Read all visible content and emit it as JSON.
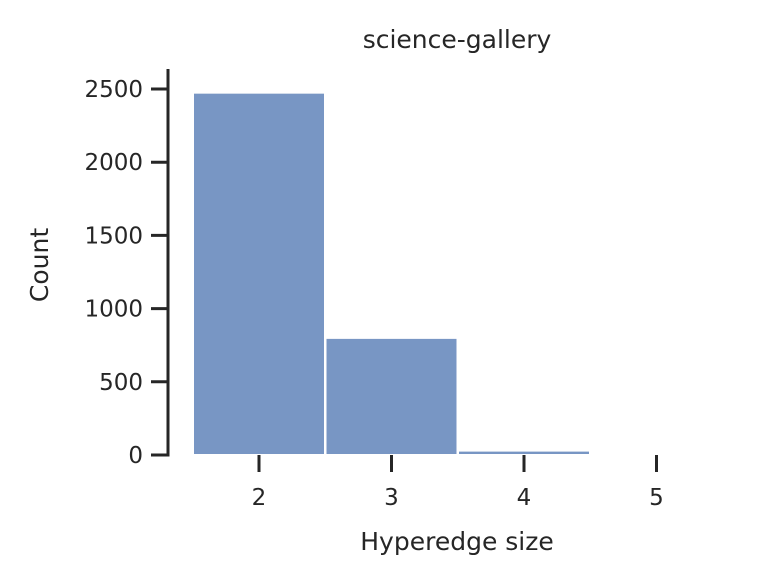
{
  "chart_data": {
    "type": "bar",
    "title": "science-gallery",
    "xlabel": "Hyperedge size",
    "ylabel": "Count",
    "categories": [
      "2",
      "3",
      "4",
      "5"
    ],
    "values": [
      2475,
      800,
      30,
      0
    ],
    "ylim": [
      0,
      2600
    ],
    "yticks": [
      0,
      500,
      1000,
      1500,
      2000,
      2500
    ],
    "ytick_labels": [
      "0",
      "500",
      "1000",
      "1500",
      "2000",
      "2500"
    ],
    "grid": false,
    "legend": "none",
    "bar_color": "#7896c4",
    "axis_color": "#262626"
  }
}
